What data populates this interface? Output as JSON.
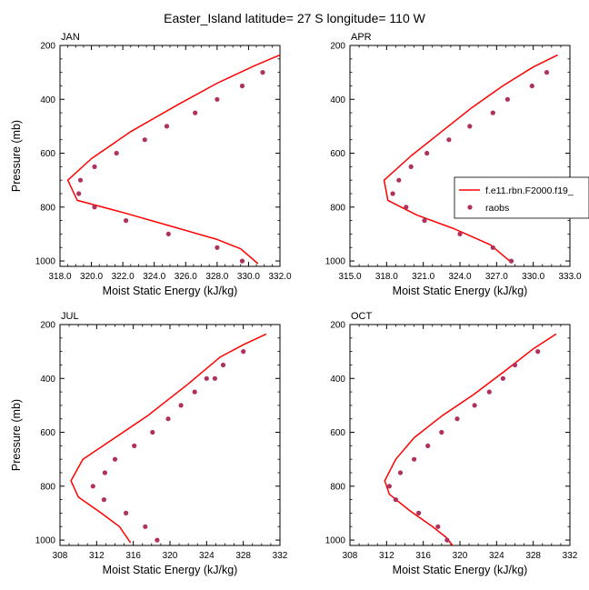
{
  "title": "Easter_Island  latitude= 27 S longitude= 110 W",
  "ylabel": "Pressure (mb)",
  "xlabel": "Moist Static Energy (kJ/kg)",
  "colors": {
    "model": "#ff0000",
    "obs": "#b03060",
    "axis": "#000000"
  },
  "legend": {
    "placement": "right of APR panel",
    "model_label": "f.e11.rbn.F2000.f19_",
    "obs_label": "raobs"
  },
  "chart_data": [
    {
      "type": "line",
      "panel": "JAN",
      "xlim": [
        318,
        332
      ],
      "ylim": [
        1020,
        200
      ],
      "y_inverted": true,
      "xticks": [
        318,
        320,
        322,
        324,
        326,
        328,
        330,
        332
      ],
      "xtick_labels": [
        "318.0",
        "320.0",
        "322.0",
        "324.0",
        "326.0",
        "328.0",
        "330.0",
        "332.0"
      ],
      "yticks": [
        200,
        400,
        600,
        800,
        1000
      ],
      "ytick_labels": [
        "200",
        "400",
        "600",
        "800",
        "1000"
      ],
      "series": [
        {
          "name": "f.e11.rbn.F2000.f19_",
          "style": "line",
          "x": [
            332.0,
            330.4,
            328.0,
            325.5,
            322.5,
            320.0,
            318.5,
            319.1,
            322.0,
            325.0,
            328.0,
            329.5,
            330.6
          ],
          "y": [
            235,
            275,
            340,
            420,
            520,
            620,
            700,
            775,
            820,
            870,
            920,
            955,
            1010
          ]
        },
        {
          "name": "raobs",
          "style": "markers",
          "x": [
            330.9,
            329.6,
            328.0,
            326.6,
            324.8,
            323.4,
            321.6,
            320.2,
            319.3,
            319.2,
            320.2,
            322.2,
            324.9,
            328.0,
            329.6
          ],
          "y": [
            300,
            350,
            400,
            450,
            500,
            550,
            600,
            650,
            700,
            750,
            800,
            850,
            900,
            950,
            1000
          ]
        }
      ]
    },
    {
      "type": "line",
      "panel": "APR",
      "xlim": [
        315,
        333
      ],
      "ylim": [
        1020,
        200
      ],
      "y_inverted": true,
      "xticks": [
        315,
        318,
        321,
        324,
        327,
        330,
        333
      ],
      "xtick_labels": [
        "315.0",
        "318.0",
        "321.0",
        "324.0",
        "327.0",
        "330.0",
        "333.0"
      ],
      "yticks": [
        200,
        400,
        600,
        800,
        1000
      ],
      "ytick_labels": [
        "200",
        "400",
        "600",
        "800",
        "1000"
      ],
      "series": [
        {
          "name": "f.e11.rbn.F2000.f19_",
          "style": "line",
          "x": [
            332.0,
            330.0,
            327.5,
            325.0,
            322.5,
            320.0,
            317.8,
            318.1,
            320.5,
            323.5,
            326.5,
            328.2
          ],
          "y": [
            235,
            280,
            350,
            430,
            520,
            610,
            700,
            775,
            830,
            880,
            940,
            1005
          ]
        },
        {
          "name": "raobs",
          "style": "markers",
          "x": [
            331.1,
            329.9,
            327.9,
            326.7,
            324.8,
            323.1,
            321.3,
            320.0,
            319.0,
            318.5,
            319.6,
            321.1,
            324.0,
            326.7,
            328.2
          ],
          "y": [
            300,
            350,
            400,
            450,
            500,
            550,
            600,
            650,
            700,
            750,
            800,
            850,
            900,
            950,
            1000
          ]
        }
      ]
    },
    {
      "type": "line",
      "panel": "JUL",
      "xlim": [
        308,
        332
      ],
      "ylim": [
        1020,
        200
      ],
      "y_inverted": true,
      "xticks": [
        308,
        312,
        316,
        320,
        324,
        328,
        332
      ],
      "xtick_labels": [
        "308",
        "312",
        "316",
        "320",
        "324",
        "328",
        "332"
      ],
      "yticks": [
        200,
        400,
        600,
        800,
        1000
      ],
      "ytick_labels": [
        "200",
        "400",
        "600",
        "800",
        "1000"
      ],
      "series": [
        {
          "name": "f.e11.rbn.F2000.f19_",
          "style": "line",
          "x": [
            330.5,
            328.0,
            325.5,
            322.0,
            317.5,
            314.0,
            310.5,
            309.2,
            310.0,
            312.5,
            314.5,
            315.7
          ],
          "y": [
            235,
            275,
            320,
            420,
            540,
            620,
            700,
            780,
            840,
            900,
            950,
            1010
          ]
        },
        {
          "name": "raobs",
          "style": "markers",
          "x": [
            328.0,
            325.8,
            324.9,
            324.0,
            322.7,
            321.2,
            319.8,
            318.1,
            316.1,
            314.0,
            312.9,
            311.6,
            312.8,
            315.2,
            317.3,
            318.6
          ],
          "y": [
            300,
            350,
            400,
            400,
            450,
            500,
            550,
            600,
            650,
            700,
            750,
            800,
            850,
            900,
            950,
            1000
          ]
        }
      ]
    },
    {
      "type": "line",
      "panel": "OCT",
      "xlim": [
        308,
        332
      ],
      "ylim": [
        1020,
        200
      ],
      "y_inverted": true,
      "xticks": [
        308,
        312,
        316,
        320,
        324,
        328,
        332
      ],
      "xtick_labels": [
        "308",
        "312",
        "316",
        "320",
        "324",
        "328",
        "332"
      ],
      "yticks": [
        200,
        400,
        600,
        800,
        1000
      ],
      "ytick_labels": [
        "200",
        "400",
        "600",
        "800",
        "1000"
      ],
      "series": [
        {
          "name": "f.e11.rbn.F2000.f19_",
          "style": "line",
          "x": [
            330.5,
            328.0,
            325.0,
            321.5,
            318.0,
            315.0,
            313.0,
            311.8,
            312.3,
            314.5,
            317.0,
            318.5,
            319.2
          ],
          "y": [
            235,
            290,
            370,
            460,
            540,
            620,
            700,
            780,
            830,
            890,
            950,
            990,
            1020
          ]
        },
        {
          "name": "raobs",
          "style": "markers",
          "x": [
            328.5,
            326.0,
            324.7,
            323.2,
            321.6,
            319.7,
            318.0,
            316.5,
            315.0,
            313.5,
            312.3,
            313.0,
            315.5,
            317.6,
            318.6
          ],
          "y": [
            300,
            350,
            400,
            450,
            500,
            550,
            600,
            650,
            700,
            750,
            800,
            850,
            900,
            950,
            1000
          ]
        }
      ]
    }
  ]
}
